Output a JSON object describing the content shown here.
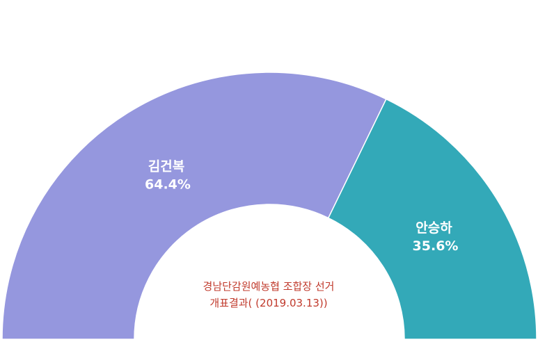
{
  "chart_data": {
    "type": "pie",
    "variant": "semi-donut",
    "title": "경남단감원예농협 조합장 선거",
    "subtitle": "개표결과( (2019.03.13))",
    "slices": [
      {
        "name": "김건복",
        "value": 64.4,
        "value_label": "64.4%",
        "color": "#9597DE"
      },
      {
        "name": "안승하",
        "value": 35.6,
        "value_label": "35.6%",
        "color": "#33A9B8"
      }
    ],
    "legend": "none"
  }
}
